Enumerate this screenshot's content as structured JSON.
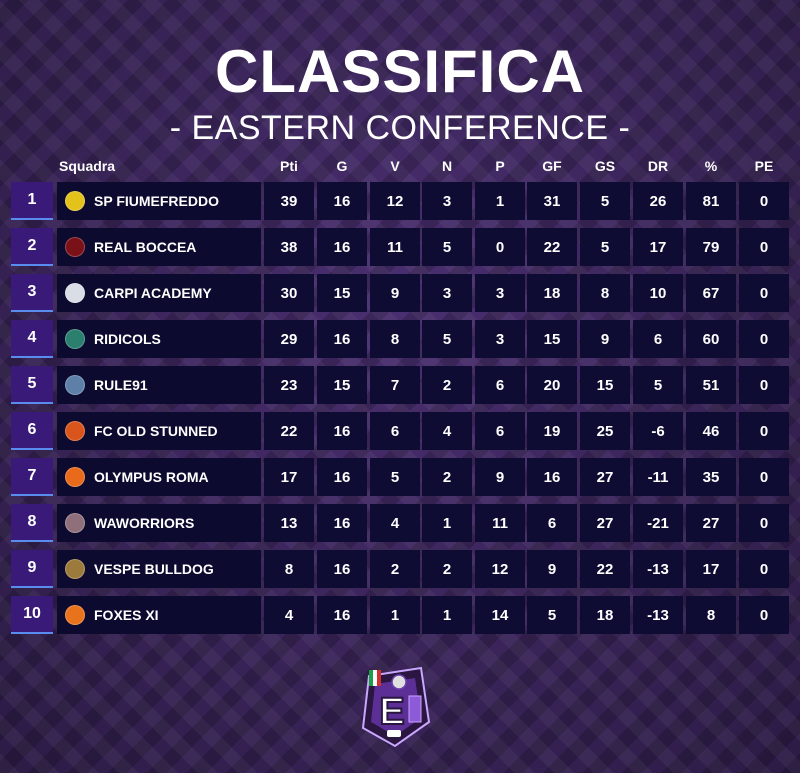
{
  "title": "CLASSIFICA",
  "subtitle": "- EASTERN CONFERENCE -",
  "columns": {
    "team": "Squadra",
    "stats": [
      "Pti",
      "G",
      "V",
      "N",
      "P",
      "GF",
      "GS",
      "DR",
      "%",
      "PE"
    ]
  },
  "rows": [
    {
      "pos": "1",
      "team": "SP FIUMEFREDDO",
      "logo_color": "#e4c21c",
      "stats": [
        "39",
        "16",
        "12",
        "3",
        "1",
        "31",
        "5",
        "26",
        "81",
        "0"
      ]
    },
    {
      "pos": "2",
      "team": "REAL BOCCEA",
      "logo_color": "#7a1018",
      "stats": [
        "38",
        "16",
        "11",
        "5",
        "0",
        "22",
        "5",
        "17",
        "79",
        "0"
      ]
    },
    {
      "pos": "3",
      "team": "CARPI ACADEMY",
      "logo_color": "#d9dde6",
      "stats": [
        "30",
        "15",
        "9",
        "3",
        "3",
        "18",
        "8",
        "10",
        "67",
        "0"
      ]
    },
    {
      "pos": "4",
      "team": "RIDICOLS",
      "logo_color": "#2a7f6e",
      "stats": [
        "29",
        "16",
        "8",
        "5",
        "3",
        "15",
        "9",
        "6",
        "60",
        "0"
      ]
    },
    {
      "pos": "5",
      "team": "RULE91",
      "logo_color": "#5d7fa8",
      "stats": [
        "23",
        "15",
        "7",
        "2",
        "6",
        "20",
        "15",
        "5",
        "51",
        "0"
      ]
    },
    {
      "pos": "6",
      "team": "FC OLD STUNNED",
      "logo_color": "#d9551c",
      "stats": [
        "22",
        "16",
        "6",
        "4",
        "6",
        "19",
        "25",
        "-6",
        "46",
        "0"
      ]
    },
    {
      "pos": "7",
      "team": "OLYMPUS ROMA",
      "logo_color": "#e86a1a",
      "stats": [
        "17",
        "16",
        "5",
        "2",
        "9",
        "16",
        "27",
        "-11",
        "35",
        "0"
      ]
    },
    {
      "pos": "8",
      "team": "WAWORRIORS",
      "logo_color": "#8f6f7a",
      "stats": [
        "13",
        "16",
        "4",
        "1",
        "11",
        "6",
        "27",
        "-21",
        "27",
        "0"
      ]
    },
    {
      "pos": "9",
      "team": "VESPE BULLDOG",
      "logo_color": "#9c7a3c",
      "stats": [
        "8",
        "16",
        "2",
        "2",
        "12",
        "9",
        "22",
        "-13",
        "17",
        "0"
      ]
    },
    {
      "pos": "10",
      "team": "FOXES XI",
      "logo_color": "#e8731c",
      "stats": [
        "4",
        "16",
        "1",
        "1",
        "14",
        "5",
        "18",
        "-13",
        "8",
        "0"
      ]
    }
  ],
  "brand_logo": {
    "icon": "e-league-shield-icon",
    "letter": "E"
  }
}
